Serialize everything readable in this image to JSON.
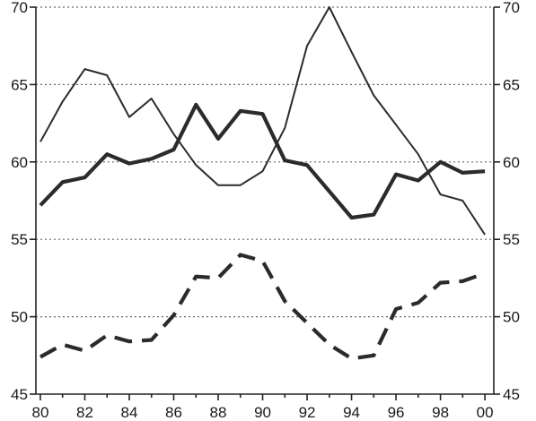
{
  "chart_data": {
    "type": "line",
    "title": "",
    "xlabel": "",
    "ylabel": "",
    "x": [
      1980,
      1981,
      1982,
      1983,
      1984,
      1985,
      1986,
      1987,
      1988,
      1989,
      1990,
      1991,
      1992,
      1993,
      1994,
      1995,
      1996,
      1997,
      1998,
      1999,
      2000
    ],
    "x_tick_labels": [
      "80",
      "82",
      "84",
      "86",
      "88",
      "90",
      "92",
      "94",
      "96",
      "98",
      "00"
    ],
    "xlim": [
      1979.8,
      2000.4
    ],
    "ylim": [
      45,
      70
    ],
    "y_ticks_left": [
      45,
      50,
      55,
      60,
      65,
      70
    ],
    "y_ticks_right": [
      45,
      50,
      55,
      60,
      65,
      70
    ],
    "grid": "horizontal dotted",
    "legend": "none",
    "series": [
      {
        "style": "thin solid",
        "color": "#2b2b2b",
        "values": [
          61.3,
          63.9,
          66.0,
          65.6,
          62.9,
          64.1,
          61.8,
          59.8,
          58.5,
          58.5,
          59.4,
          62.2,
          67.5,
          70.0,
          67.1,
          64.3,
          62.4,
          60.5,
          57.9,
          57.5,
          55.3
        ]
      },
      {
        "style": "thick solid",
        "color": "#2b2b2b",
        "values": [
          57.2,
          58.7,
          59.0,
          60.5,
          59.9,
          60.2,
          60.8,
          63.7,
          61.5,
          63.3,
          63.1,
          60.1,
          59.8,
          58.1,
          56.4,
          56.6,
          59.2,
          58.8,
          60.0,
          59.3,
          59.4
        ]
      },
      {
        "style": "thick dashed",
        "color": "#2b2b2b",
        "values": [
          47.4,
          48.2,
          47.8,
          48.8,
          48.4,
          48.5,
          50.1,
          52.6,
          52.5,
          54.0,
          53.6,
          51.0,
          49.6,
          48.2,
          47.3,
          47.5,
          50.5,
          50.9,
          52.2,
          52.3,
          52.8
        ]
      }
    ]
  }
}
